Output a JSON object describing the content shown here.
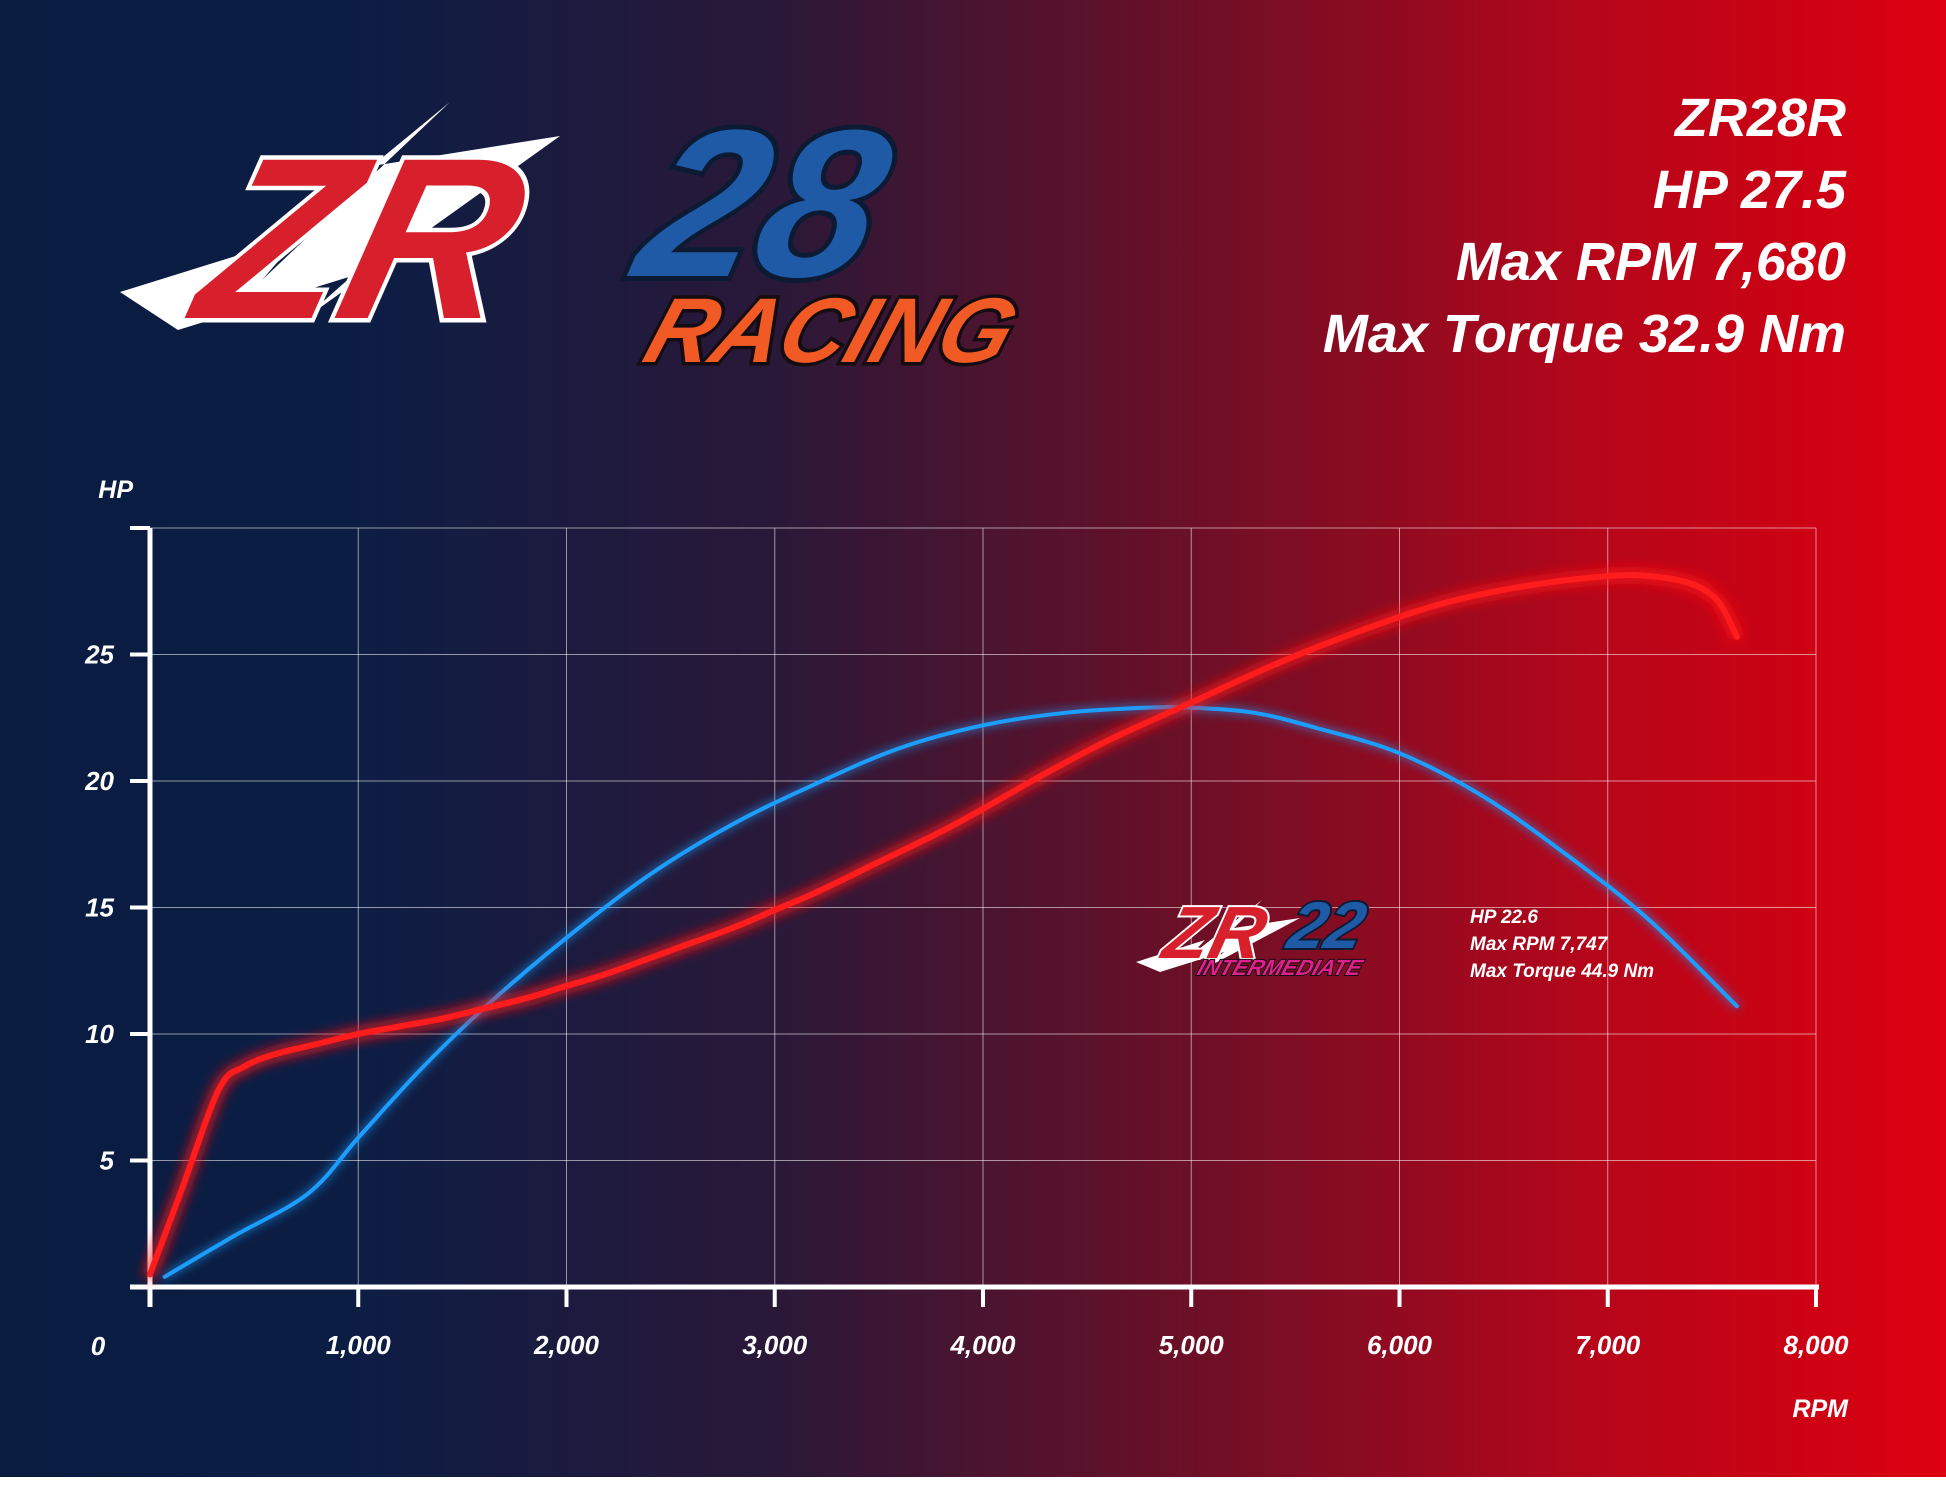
{
  "logo": {
    "main_text": "ZR",
    "number": "28",
    "sub": "RACING"
  },
  "specs": {
    "model": "ZR28R",
    "hp": "HP 27.5",
    "max_rpm": "Max RPM 7,680",
    "max_torque": "Max Torque 32.9 Nm"
  },
  "intermediate": {
    "logo_main": "ZR",
    "logo_number": "22",
    "logo_sub": "INTERMEDIATE",
    "hp": "HP 22.6",
    "max_rpm": "Max RPM 7,747",
    "max_torque": "Max Torque 44.9 Nm"
  },
  "chart_data": {
    "type": "line",
    "title": "",
    "xlabel": "RPM",
    "ylabel": "HP",
    "xlim": [
      0,
      8000
    ],
    "ylim": [
      0,
      30
    ],
    "x_ticks": [
      0,
      1000,
      2000,
      3000,
      4000,
      5000,
      6000,
      7000,
      8000
    ],
    "x_tick_labels": [
      "0",
      "1,000",
      "2,000",
      "3,000",
      "4,000",
      "5,000",
      "6,000",
      "7,000",
      "8,000"
    ],
    "y_ticks": [
      5,
      10,
      15,
      20,
      25
    ],
    "y_tick_labels": [
      "5",
      "10",
      "15",
      "20",
      "25"
    ],
    "grid": true,
    "legend": "none",
    "series": [
      {
        "color": "#ff1e1e",
        "x": [
          0,
          150,
          330,
          450,
          600,
          800,
          1000,
          1200,
          1400,
          1600,
          1800,
          2000,
          2200,
          2500,
          2800,
          3000,
          3200,
          3500,
          3800,
          4000,
          4300,
          4600,
          5000,
          5400,
          5800,
          6200,
          6600,
          7000,
          7200,
          7400,
          7530,
          7620
        ],
        "y": [
          0.5,
          3.8,
          7.8,
          8.7,
          9.2,
          9.6,
          10.0,
          10.3,
          10.6,
          11.0,
          11.4,
          11.9,
          12.4,
          13.3,
          14.2,
          14.9,
          15.6,
          16.8,
          18.0,
          18.9,
          20.3,
          21.6,
          23.1,
          24.6,
          25.9,
          27.0,
          27.7,
          28.1,
          28.1,
          27.8,
          27.1,
          25.7
        ]
      },
      {
        "color": "#1e9eff",
        "x": [
          70,
          400,
          760,
          1000,
          1300,
          1600,
          2000,
          2400,
          2800,
          3200,
          3600,
          4000,
          4400,
          4800,
          5000,
          5300,
          5600,
          6000,
          6400,
          6800,
          7200,
          7620
        ],
        "y": [
          0.4,
          2.0,
          3.7,
          5.9,
          8.6,
          11.0,
          13.8,
          16.3,
          18.3,
          19.9,
          21.3,
          22.2,
          22.7,
          22.9,
          22.9,
          22.7,
          22.1,
          21.1,
          19.4,
          17.1,
          14.5,
          11.1
        ]
      }
    ]
  }
}
